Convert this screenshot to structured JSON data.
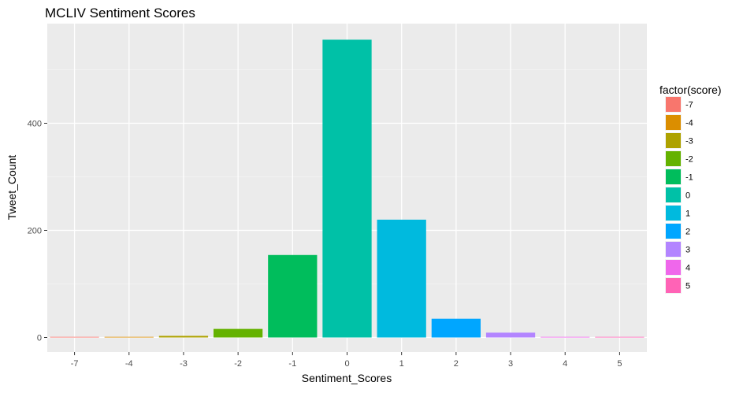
{
  "chart_data": {
    "type": "bar",
    "title": "MCLIV Sentiment Scores",
    "xlabel": "Sentiment_Scores",
    "ylabel": "Tweet_Count",
    "categories": [
      "-7",
      "-4",
      "-3",
      "-2",
      "-1",
      "0",
      "1",
      "2",
      "3",
      "4",
      "5"
    ],
    "values": [
      1,
      1,
      3,
      16,
      154,
      556,
      220,
      35,
      9,
      1,
      1
    ],
    "colors": [
      "#F8766D",
      "#DB8E00",
      "#AEA200",
      "#64B200",
      "#00BD5C",
      "#00C1A7",
      "#00BADE",
      "#00A6FF",
      "#B385FF",
      "#EF67EB",
      "#FF63B6"
    ],
    "ylim": [
      0,
      583
    ],
    "yticks": [
      0,
      200,
      400
    ],
    "grid": true,
    "legend": {
      "title": "factor(score)",
      "placement": "right",
      "entries": [
        "-7",
        "-4",
        "-3",
        "-2",
        "-1",
        "0",
        "1",
        "2",
        "3",
        "4",
        "5"
      ]
    }
  }
}
